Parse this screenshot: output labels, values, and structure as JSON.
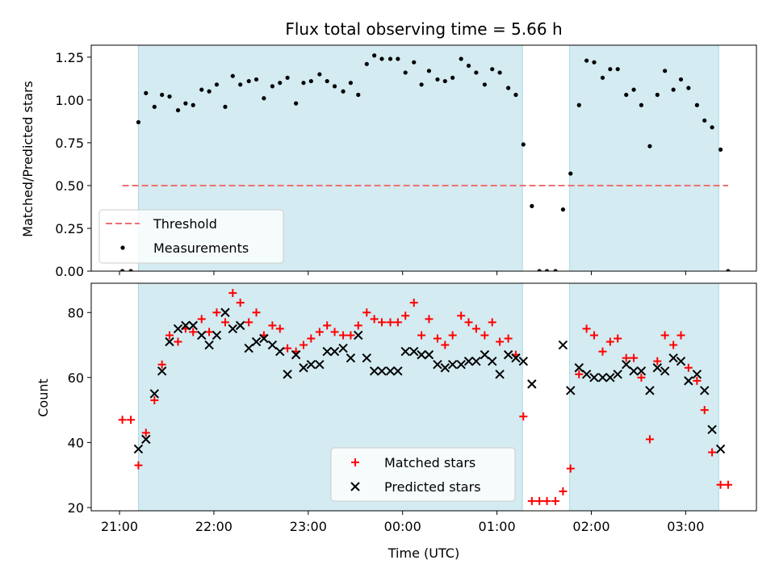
{
  "chart_data": [
    {
      "type": "scatter",
      "title": "Flux total observing time = 5.66 h",
      "ylabel": "Matched/Predicted stars",
      "xlabel": "",
      "ylim": [
        0,
        1.32
      ],
      "yticks": [
        0,
        0.25,
        0.5,
        0.75,
        1.0,
        1.25
      ],
      "ytick_labels": [
        "0.00",
        "0.25",
        "0.50",
        "0.75",
        "1.00",
        "1.25"
      ],
      "x_unit": "hours since 21:00 UTC",
      "xlim": [
        -0.3,
        6.75
      ],
      "shaded_intervals": [
        [
          0.2,
          4.27
        ],
        [
          4.77,
          6.35
        ]
      ],
      "legend": {
        "placement": "lower-left",
        "entries": [
          "Threshold",
          "Measurements"
        ]
      },
      "series": [
        {
          "name": "Threshold",
          "kind": "dashed-line",
          "color": "#f07070",
          "points": [
            [
              0.03,
              0.5
            ],
            [
              6.45,
              0.5
            ]
          ]
        },
        {
          "name": "Measurements",
          "kind": "dots",
          "color": "#000000",
          "points": [
            [
              0.03,
              0.0
            ],
            [
              0.12,
              0.0
            ],
            [
              0.2,
              0.87
            ],
            [
              0.28,
              1.04
            ],
            [
              0.37,
              0.96
            ],
            [
              0.45,
              1.03
            ],
            [
              0.53,
              1.02
            ],
            [
              0.62,
              0.94
            ],
            [
              0.7,
              0.98
            ],
            [
              0.78,
              0.97
            ],
            [
              0.87,
              1.06
            ],
            [
              0.95,
              1.05
            ],
            [
              1.03,
              1.09
            ],
            [
              1.12,
              0.96
            ],
            [
              1.2,
              1.14
            ],
            [
              1.28,
              1.09
            ],
            [
              1.37,
              1.11
            ],
            [
              1.45,
              1.12
            ],
            [
              1.53,
              1.01
            ],
            [
              1.62,
              1.08
            ],
            [
              1.7,
              1.1
            ],
            [
              1.78,
              1.13
            ],
            [
              1.87,
              0.98
            ],
            [
              1.95,
              1.1
            ],
            [
              2.03,
              1.11
            ],
            [
              2.12,
              1.15
            ],
            [
              2.2,
              1.11
            ],
            [
              2.28,
              1.08
            ],
            [
              2.37,
              1.05
            ],
            [
              2.45,
              1.1
            ],
            [
              2.53,
              1.03
            ],
            [
              2.62,
              1.21
            ],
            [
              2.7,
              1.26
            ],
            [
              2.78,
              1.24
            ],
            [
              2.87,
              1.24
            ],
            [
              2.95,
              1.24
            ],
            [
              3.03,
              1.16
            ],
            [
              3.12,
              1.22
            ],
            [
              3.2,
              1.09
            ],
            [
              3.28,
              1.17
            ],
            [
              3.37,
              1.12
            ],
            [
              3.45,
              1.11
            ],
            [
              3.53,
              1.13
            ],
            [
              3.62,
              1.24
            ],
            [
              3.7,
              1.2
            ],
            [
              3.78,
              1.16
            ],
            [
              3.87,
              1.09
            ],
            [
              3.95,
              1.18
            ],
            [
              4.03,
              1.16
            ],
            [
              4.12,
              1.07
            ],
            [
              4.2,
              1.03
            ],
            [
              4.28,
              0.74
            ],
            [
              4.37,
              0.38
            ],
            [
              4.45,
              0.0
            ],
            [
              4.53,
              0.0
            ],
            [
              4.62,
              0.0
            ],
            [
              4.7,
              0.36
            ],
            [
              4.78,
              0.57
            ],
            [
              4.87,
              0.97
            ],
            [
              4.95,
              1.23
            ],
            [
              5.03,
              1.22
            ],
            [
              5.12,
              1.13
            ],
            [
              5.2,
              1.18
            ],
            [
              5.28,
              1.18
            ],
            [
              5.37,
              1.03
            ],
            [
              5.45,
              1.06
            ],
            [
              5.53,
              0.97
            ],
            [
              5.62,
              0.73
            ],
            [
              5.7,
              1.03
            ],
            [
              5.78,
              1.17
            ],
            [
              5.87,
              1.06
            ],
            [
              5.95,
              1.12
            ],
            [
              6.03,
              1.07
            ],
            [
              6.12,
              0.97
            ],
            [
              6.2,
              0.88
            ],
            [
              6.28,
              0.84
            ],
            [
              6.37,
              0.71
            ],
            [
              6.45,
              0.0
            ]
          ]
        }
      ]
    },
    {
      "type": "scatter",
      "title": "",
      "ylabel": "Count",
      "xlabel": "Time (UTC)",
      "ylim": [
        19,
        89
      ],
      "yticks": [
        20,
        40,
        60,
        80
      ],
      "ytick_labels": [
        "20",
        "40",
        "60",
        "80"
      ],
      "x_unit": "hours since 21:00 UTC",
      "xlim": [
        -0.3,
        6.75
      ],
      "xticks": [
        0,
        1,
        2,
        3,
        4,
        5,
        6
      ],
      "xtick_labels": [
        "21:00",
        "22:00",
        "23:00",
        "00:00",
        "01:00",
        "02:00",
        "03:00"
      ],
      "shaded_intervals": [
        [
          0.2,
          4.27
        ],
        [
          4.77,
          6.35
        ]
      ],
      "legend": {
        "placement": "lower-right-center",
        "entries": [
          "Matched stars",
          "Predicted stars"
        ]
      },
      "series": [
        {
          "name": "Matched stars",
          "kind": "plus",
          "color": "#ff0000",
          "points": [
            [
              0.03,
              47
            ],
            [
              0.12,
              47
            ],
            [
              0.2,
              33
            ],
            [
              0.28,
              43
            ],
            [
              0.37,
              53
            ],
            [
              0.45,
              64
            ],
            [
              0.53,
              73
            ],
            [
              0.62,
              71
            ],
            [
              0.7,
              75
            ],
            [
              0.78,
              74
            ],
            [
              0.87,
              78
            ],
            [
              0.95,
              74
            ],
            [
              1.03,
              80
            ],
            [
              1.12,
              77
            ],
            [
              1.2,
              86
            ],
            [
              1.28,
              83
            ],
            [
              1.37,
              77
            ],
            [
              1.45,
              80
            ],
            [
              1.53,
              73
            ],
            [
              1.62,
              76
            ],
            [
              1.7,
              75
            ],
            [
              1.78,
              69
            ],
            [
              1.87,
              68
            ],
            [
              1.95,
              70
            ],
            [
              2.03,
              72
            ],
            [
              2.12,
              74
            ],
            [
              2.2,
              76
            ],
            [
              2.28,
              74
            ],
            [
              2.37,
              73
            ],
            [
              2.45,
              73
            ],
            [
              2.53,
              76
            ],
            [
              2.62,
              80
            ],
            [
              2.7,
              78
            ],
            [
              2.78,
              77
            ],
            [
              2.87,
              77
            ],
            [
              2.95,
              77
            ],
            [
              3.03,
              79
            ],
            [
              3.12,
              83
            ],
            [
              3.2,
              73
            ],
            [
              3.28,
              78
            ],
            [
              3.37,
              72
            ],
            [
              3.45,
              70
            ],
            [
              3.53,
              73
            ],
            [
              3.62,
              79
            ],
            [
              3.7,
              77
            ],
            [
              3.78,
              75
            ],
            [
              3.87,
              73
            ],
            [
              3.95,
              77
            ],
            [
              4.03,
              71
            ],
            [
              4.12,
              72
            ],
            [
              4.2,
              67
            ],
            [
              4.28,
              48
            ],
            [
              4.37,
              22
            ],
            [
              4.45,
              22
            ],
            [
              4.53,
              22
            ],
            [
              4.62,
              22
            ],
            [
              4.7,
              25
            ],
            [
              4.78,
              32
            ],
            [
              4.87,
              61
            ],
            [
              4.95,
              75
            ],
            [
              5.03,
              73
            ],
            [
              5.12,
              68
            ],
            [
              5.2,
              71
            ],
            [
              5.28,
              72
            ],
            [
              5.37,
              66
            ],
            [
              5.45,
              66
            ],
            [
              5.53,
              60
            ],
            [
              5.62,
              41
            ],
            [
              5.7,
              65
            ],
            [
              5.78,
              73
            ],
            [
              5.87,
              70
            ],
            [
              5.95,
              73
            ],
            [
              6.03,
              63
            ],
            [
              6.12,
              59
            ],
            [
              6.2,
              50
            ],
            [
              6.28,
              37
            ],
            [
              6.37,
              27
            ],
            [
              6.45,
              27
            ]
          ]
        },
        {
          "name": "Predicted stars",
          "kind": "x",
          "color": "#000000",
          "points": [
            [
              0.2,
              38
            ],
            [
              0.28,
              41
            ],
            [
              0.37,
              55
            ],
            [
              0.45,
              62
            ],
            [
              0.53,
              71
            ],
            [
              0.62,
              75
            ],
            [
              0.7,
              76
            ],
            [
              0.78,
              76
            ],
            [
              0.87,
              73
            ],
            [
              0.95,
              70
            ],
            [
              1.03,
              73
            ],
            [
              1.12,
              80
            ],
            [
              1.2,
              75
            ],
            [
              1.28,
              76
            ],
            [
              1.37,
              69
            ],
            [
              1.45,
              71
            ],
            [
              1.53,
              72
            ],
            [
              1.62,
              70
            ],
            [
              1.7,
              68
            ],
            [
              1.78,
              61
            ],
            [
              1.87,
              67
            ],
            [
              1.95,
              63
            ],
            [
              2.03,
              64
            ],
            [
              2.12,
              64
            ],
            [
              2.2,
              68
            ],
            [
              2.28,
              68
            ],
            [
              2.37,
              69
            ],
            [
              2.45,
              66
            ],
            [
              2.53,
              73
            ],
            [
              2.62,
              66
            ],
            [
              2.7,
              62
            ],
            [
              2.78,
              62
            ],
            [
              2.87,
              62
            ],
            [
              2.95,
              62
            ],
            [
              3.03,
              68
            ],
            [
              3.12,
              68
            ],
            [
              3.2,
              67
            ],
            [
              3.28,
              67
            ],
            [
              3.37,
              64
            ],
            [
              3.45,
              63
            ],
            [
              3.53,
              64
            ],
            [
              3.62,
              64
            ],
            [
              3.7,
              65
            ],
            [
              3.78,
              65
            ],
            [
              3.87,
              67
            ],
            [
              3.95,
              65
            ],
            [
              4.03,
              61
            ],
            [
              4.12,
              67
            ],
            [
              4.2,
              66
            ],
            [
              4.28,
              65
            ],
            [
              4.37,
              58
            ],
            [
              4.7,
              70
            ],
            [
              4.78,
              56
            ],
            [
              4.87,
              63
            ],
            [
              4.95,
              61
            ],
            [
              5.03,
              60
            ],
            [
              5.12,
              60
            ],
            [
              5.2,
              60
            ],
            [
              5.28,
              61
            ],
            [
              5.37,
              64
            ],
            [
              5.45,
              62
            ],
            [
              5.53,
              62
            ],
            [
              5.62,
              56
            ],
            [
              5.7,
              63
            ],
            [
              5.78,
              62
            ],
            [
              5.87,
              66
            ],
            [
              5.95,
              65
            ],
            [
              6.03,
              59
            ],
            [
              6.12,
              61
            ],
            [
              6.2,
              56
            ],
            [
              6.28,
              44
            ],
            [
              6.37,
              38
            ]
          ]
        }
      ]
    }
  ],
  "colors": {
    "shade": "#d3ebf1",
    "shade_edge": "#a9d8e3",
    "threshold": "#f07070",
    "matched": "#ff0000",
    "predicted": "#000000",
    "measurements": "#000000"
  }
}
